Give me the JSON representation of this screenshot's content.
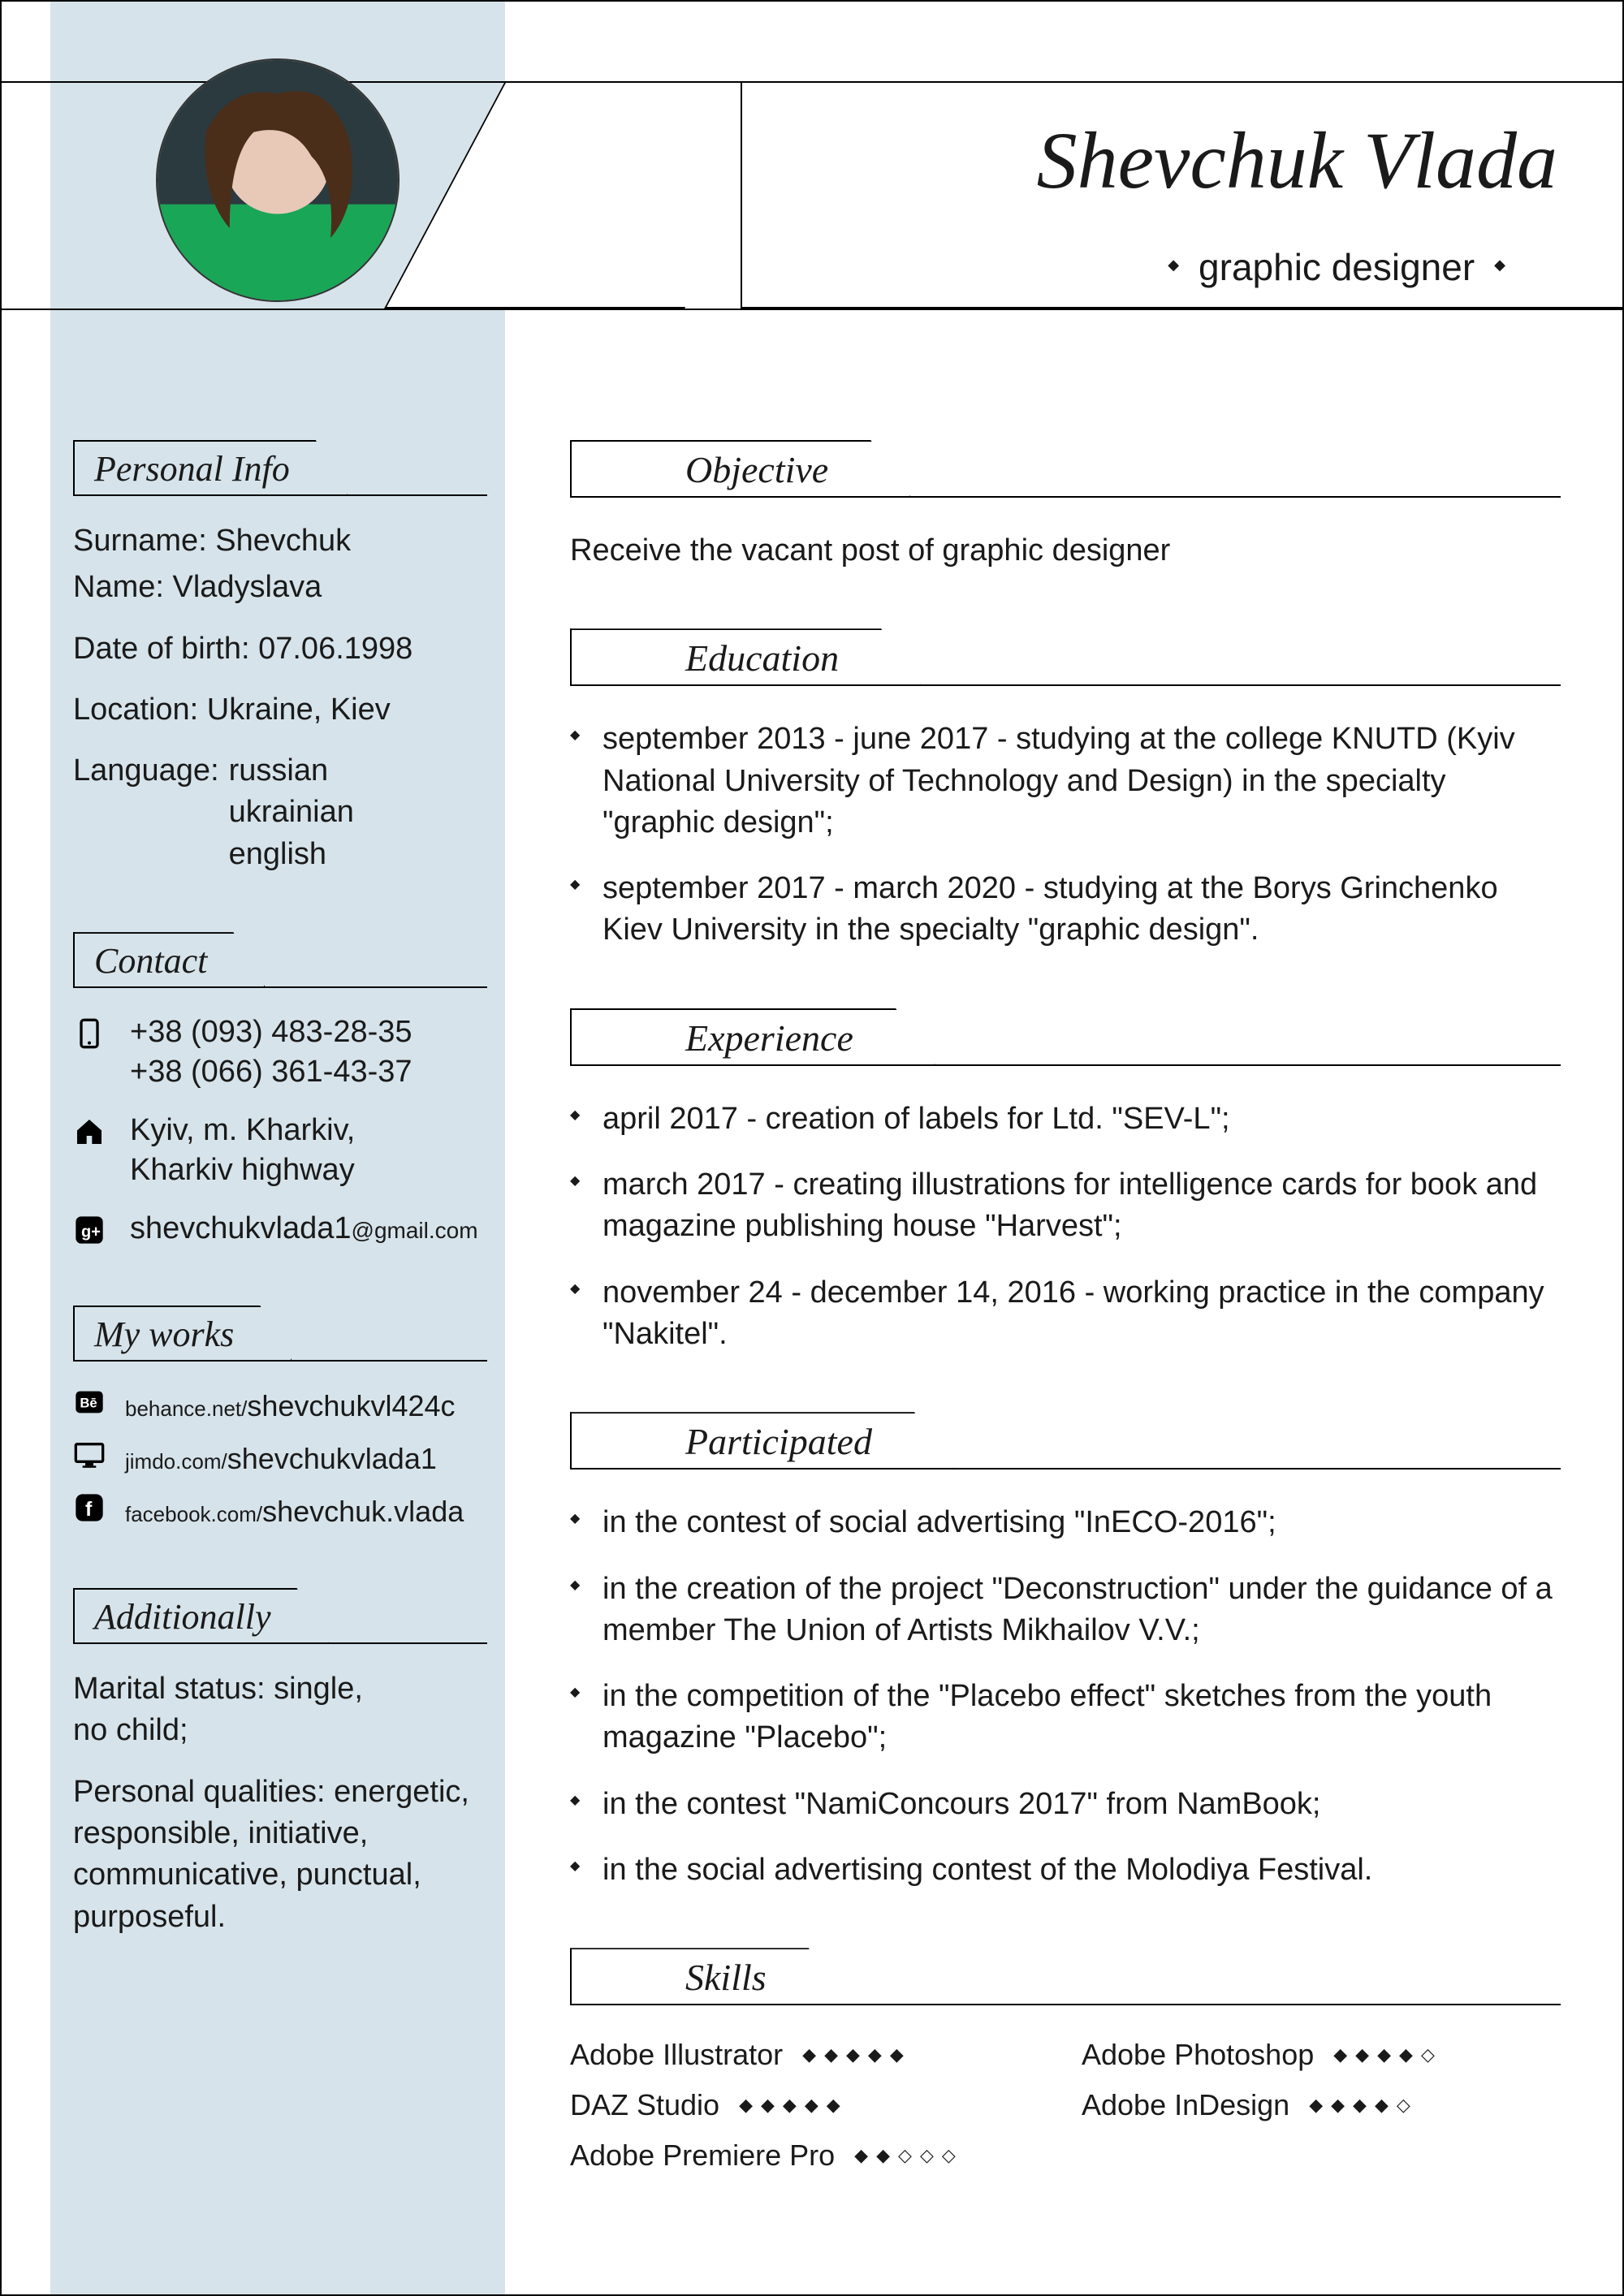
{
  "header": {
    "name": "Shevchuk Vlada",
    "subtitle": "graphic designer"
  },
  "sidebar": {
    "personal": {
      "title": "Personal Info",
      "surname_line": "Surname: Shevchuk",
      "name_line": "Name: Vladyslava",
      "dob": "Date of birth: 07.06.1998",
      "location": "Location: Ukraine, Kiev",
      "lang_label": "Language:",
      "lang1": "russian",
      "lang2": "ukrainian",
      "lang3": "english"
    },
    "contact": {
      "title": "Contact",
      "phone1": "+38 (093) 483-28-35",
      "phone2": "+38 (066) 361-43-37",
      "addr1": "Kyiv, m. Kharkiv,",
      "addr2": "Kharkiv highway",
      "email_user": "shevchukvlada1",
      "email_dom": "@gmail.com"
    },
    "works": {
      "title": "My works",
      "be_dom": "behance.net/",
      "be_user": "shevchukvl424c",
      "jm_dom": "jimdo.com/",
      "jm_user": "shevchukvlada1",
      "fb_dom": "facebook.com/",
      "fb_user": "shevchuk.vlada"
    },
    "additional": {
      "title": "Additionally",
      "marital1": "Marital status: single,",
      "marital2": "no child;",
      "qual": "Personal qualities: energetic, responsible, initiative, communicative, punctual, purposeful."
    }
  },
  "main": {
    "objective": {
      "title": "Objective",
      "text": "Receive the vacant post of graphic designer"
    },
    "education": {
      "title": "Education",
      "items": [
        "september 2013 - june 2017 - studying at the college KNUTD (Kyiv National University of Technology and Design) in the specialty \"graphic design\";",
        "september 2017 - march 2020 - studying at the Borys Grinchenko Kiev University in the specialty \"graphic design\"."
      ]
    },
    "experience": {
      "title": "Experience",
      "items": [
        "april 2017 - creation of labels for Ltd. \"SEV-L\";",
        "march 2017 - creating illustrations for intelligence cards for book and magazine publishing house \"Harvest\";",
        "november 24 - december 14, 2016 - working practice in the company \"Nakitel\"."
      ]
    },
    "participated": {
      "title": "Participated",
      "items": [
        "in the contest of social advertising \"InECO-2016\";",
        "in the creation of the project \"Deconstruction\" under the guidance of a member The Union of Artists Mikhailov V.V.;",
        "in the competition of the \"Placebo effect\" sketches from the youth magazine \"Placebo\";",
        "in the contest \"NamiConcours 2017\" from NamBook;",
        "in the social advertising contest of the Molodiya Festival."
      ]
    },
    "skills": {
      "title": "Skills",
      "items": [
        {
          "name": "Adobe Illustrator",
          "rating": 5
        },
        {
          "name": "Adobe Photoshop",
          "rating": 4
        },
        {
          "name": "DAZ Studio",
          "rating": 5
        },
        {
          "name": "Adobe InDesign",
          "rating": 4
        },
        {
          "name": "Adobe Premiere Pro",
          "rating": 2
        }
      ]
    }
  },
  "style": {
    "sidebar_bg": "#d6e3ea",
    "text": "#1a1a1a"
  }
}
